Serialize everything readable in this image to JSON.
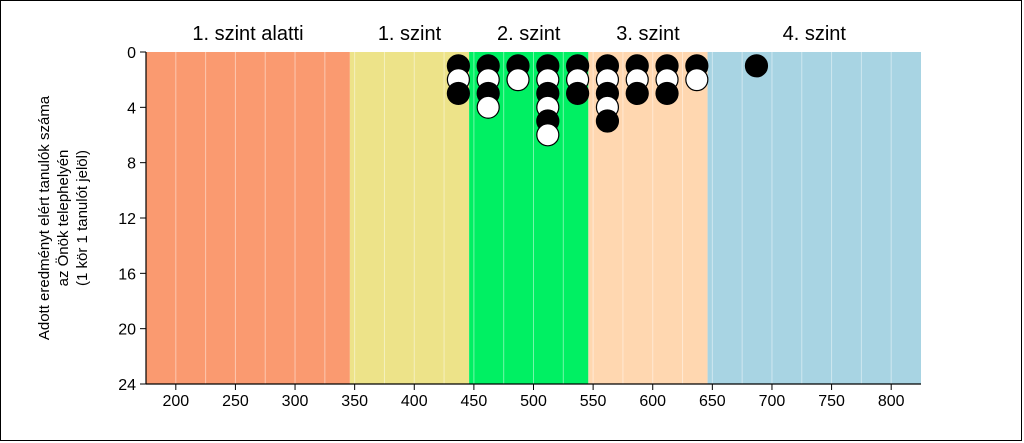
{
  "chart_data": {
    "type": "scatter",
    "title": "",
    "ylabel_lines": [
      "Adott eredményt elért tanulók száma",
      "az Önök telephelyén",
      "(1 kör 1 tanulót jelöl)"
    ],
    "xlabel": "",
    "xlim": [
      175,
      825
    ],
    "ylim": [
      0,
      24
    ],
    "y_inverted": true,
    "x_ticks": [
      200,
      250,
      300,
      350,
      400,
      450,
      500,
      550,
      600,
      650,
      700,
      750,
      800
    ],
    "y_ticks": [
      0,
      4,
      8,
      12,
      16,
      20,
      24
    ],
    "vertical_grid_step": 25,
    "bands": [
      {
        "label": "1. szint alatti",
        "from": 175,
        "to": 346,
        "color": "#FA9A70"
      },
      {
        "label": "1. szint",
        "from": 346,
        "to": 446,
        "color": "#EDE389"
      },
      {
        "label": "2. szint",
        "from": 446,
        "to": 546,
        "color": "#00F063"
      },
      {
        "label": "3. szint",
        "from": 546,
        "to": 646,
        "color": "#FFD7B0"
      },
      {
        "label": "4. szint",
        "from": 646,
        "to": 825,
        "color": "#A8D4E3"
      }
    ],
    "columns": [
      {
        "x": 437,
        "circles": [
          "black",
          "white",
          "black"
        ]
      },
      {
        "x": 462,
        "circles": [
          "black",
          "white",
          "black",
          "white"
        ]
      },
      {
        "x": 487,
        "circles": [
          "black",
          "white"
        ]
      },
      {
        "x": 512,
        "circles": [
          "black",
          "white",
          "black",
          "white",
          "black",
          "white"
        ]
      },
      {
        "x": 537,
        "circles": [
          "black",
          "white",
          "black"
        ]
      },
      {
        "x": 562,
        "circles": [
          "black",
          "white",
          "black",
          "white",
          "black"
        ]
      },
      {
        "x": 587,
        "circles": [
          "black",
          "white",
          "black"
        ]
      },
      {
        "x": 612,
        "circles": [
          "black",
          "white",
          "black"
        ]
      },
      {
        "x": 637,
        "circles": [
          "black",
          "white"
        ]
      },
      {
        "x": 687,
        "circles": [
          "black"
        ]
      }
    ]
  }
}
